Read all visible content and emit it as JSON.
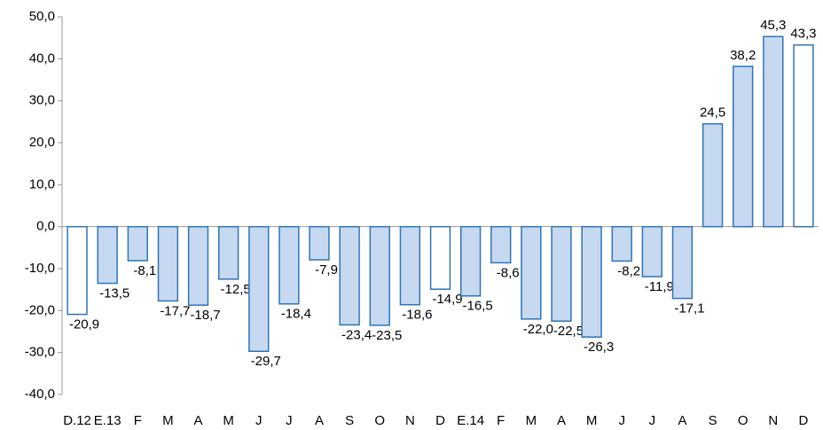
{
  "chart_data": {
    "type": "bar",
    "categories": [
      "D.12",
      "E.13",
      "F",
      "M",
      "A",
      "M",
      "J",
      "J",
      "A",
      "S",
      "O",
      "N",
      "D",
      "E.14",
      "F",
      "M",
      "A",
      "M",
      "J",
      "J",
      "A",
      "S",
      "O",
      "N",
      "D"
    ],
    "values": [
      -20.9,
      -13.5,
      -8.1,
      -17.7,
      -18.7,
      -12.5,
      -29.7,
      -18.4,
      -7.9,
      -23.4,
      -23.5,
      -18.6,
      -14.9,
      -16.5,
      -8.6,
      -22.0,
      -22.5,
      -26.3,
      -8.2,
      -11.9,
      -17.1,
      24.5,
      38.2,
      45.3,
      43.3
    ],
    "value_labels": [
      "-20,9",
      "-13,5",
      "-8,1",
      "-17,7",
      "-18,7",
      "-12,5",
      "-29,7",
      "-18,4",
      "-7,9",
      "-23,4",
      "-23,5",
      "-18,6",
      "-14,9",
      "-16,5",
      "-8,6",
      "-22,0",
      "-22,5",
      "-26,3",
      "-8,2",
      "-11,9",
      "-17,1",
      "24,5",
      "38,2",
      "45,3",
      "43,3"
    ],
    "colors": [
      "#ffffff",
      "#c6d9f1",
      "#c6d9f1",
      "#c6d9f1",
      "#c6d9f1",
      "#c6d9f1",
      "#c6d9f1",
      "#c6d9f1",
      "#c6d9f1",
      "#c6d9f1",
      "#c6d9f1",
      "#c6d9f1",
      "#ffffff",
      "#c6d9f1",
      "#c6d9f1",
      "#c6d9f1",
      "#c6d9f1",
      "#c6d9f1",
      "#c6d9f1",
      "#c6d9f1",
      "#c6d9f1",
      "#c6d9f1",
      "#c6d9f1",
      "#c6d9f1",
      "#ffffff"
    ],
    "edge_color": "#2e75b6",
    "ylim": [
      -40,
      50
    ],
    "yticks": [
      {
        "value": -40,
        "label": "-40,0"
      },
      {
        "value": -30,
        "label": "-30,0"
      },
      {
        "value": -20,
        "label": "-20,0"
      },
      {
        "value": -10,
        "label": "-10,0"
      },
      {
        "value": 0,
        "label": "0,0"
      },
      {
        "value": 10,
        "label": "10,0"
      },
      {
        "value": 20,
        "label": "20,0"
      },
      {
        "value": 30,
        "label": "30,0"
      },
      {
        "value": 40,
        "label": "40,0"
      },
      {
        "value": 50,
        "label": "50,0"
      }
    ],
    "grid": false
  }
}
